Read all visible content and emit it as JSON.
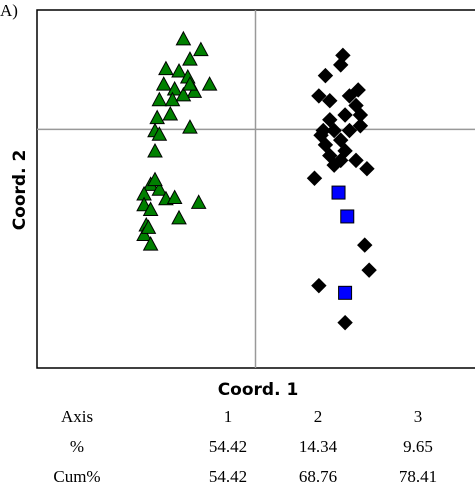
{
  "chart_data": {
    "type": "scatter",
    "panel_label": "A)",
    "x_label": "Coord. 1",
    "y_label": "Coord. 2",
    "xlim": [
      -1,
      1
    ],
    "ylim": [
      -2,
      1
    ],
    "zero_lines": true,
    "series": [
      {
        "color": "#008000",
        "marker": "triangle",
        "x": [
          -0.33,
          -0.25,
          -0.3,
          -0.41,
          -0.35,
          -0.31,
          -0.21,
          -0.42,
          -0.37,
          -0.28,
          -0.44,
          -0.38,
          -0.33,
          -0.3,
          -0.45,
          -0.39,
          -0.3,
          -0.46,
          -0.44,
          -0.46,
          -0.48,
          -0.44,
          -0.51,
          -0.41,
          -0.37,
          -0.26,
          -0.51,
          -0.48,
          -0.35,
          -0.5,
          -0.51,
          -0.48,
          -0.49,
          -0.46
        ],
        "values": [
          0.75,
          0.66,
          0.58,
          0.5,
          0.48,
          0.43,
          0.37,
          0.37,
          0.33,
          0.31,
          0.24,
          0.24,
          0.28,
          0.37,
          0.09,
          0.12,
          0.01,
          -0.02,
          -0.05,
          -0.19,
          -0.47,
          -0.51,
          -0.55,
          -0.59,
          -0.58,
          -0.62,
          -0.64,
          -0.68,
          -0.75,
          -0.81,
          -0.89,
          -0.97,
          -0.83,
          -0.43
        ]
      },
      {
        "color": "#000000",
        "marker": "diamond",
        "x": [
          0.4,
          0.39,
          0.47,
          0.43,
          0.32,
          0.29,
          0.34,
          0.46,
          0.41,
          0.48,
          0.34,
          0.3,
          0.36,
          0.43,
          0.39,
          0.32,
          0.41,
          0.34,
          0.46,
          0.51,
          0.36,
          0.27,
          0.39,
          0.5,
          0.52,
          0.29,
          0.41,
          0.48,
          0.31
        ],
        "values": [
          0.62,
          0.54,
          0.33,
          0.28,
          0.45,
          0.28,
          0.24,
          0.2,
          0.12,
          0.12,
          0.08,
          -0.05,
          -0.01,
          -0.01,
          -0.09,
          -0.13,
          -0.18,
          -0.22,
          -0.26,
          -0.33,
          -0.3,
          -0.41,
          -0.26,
          -0.97,
          -1.18,
          -1.31,
          -1.62,
          0.03,
          -0.01
        ]
      },
      {
        "color": "#0000ff",
        "marker": "square",
        "x": [
          0.38,
          0.42,
          0.41
        ],
        "values": [
          -0.53,
          -0.73,
          -1.37
        ]
      }
    ]
  },
  "table": {
    "rows": [
      [
        "Axis",
        "1",
        "2",
        "3"
      ],
      [
        "%",
        "54.42",
        "14.34",
        "9.65"
      ],
      [
        "Cum%",
        "54.42",
        "68.76",
        "78.41"
      ]
    ]
  }
}
